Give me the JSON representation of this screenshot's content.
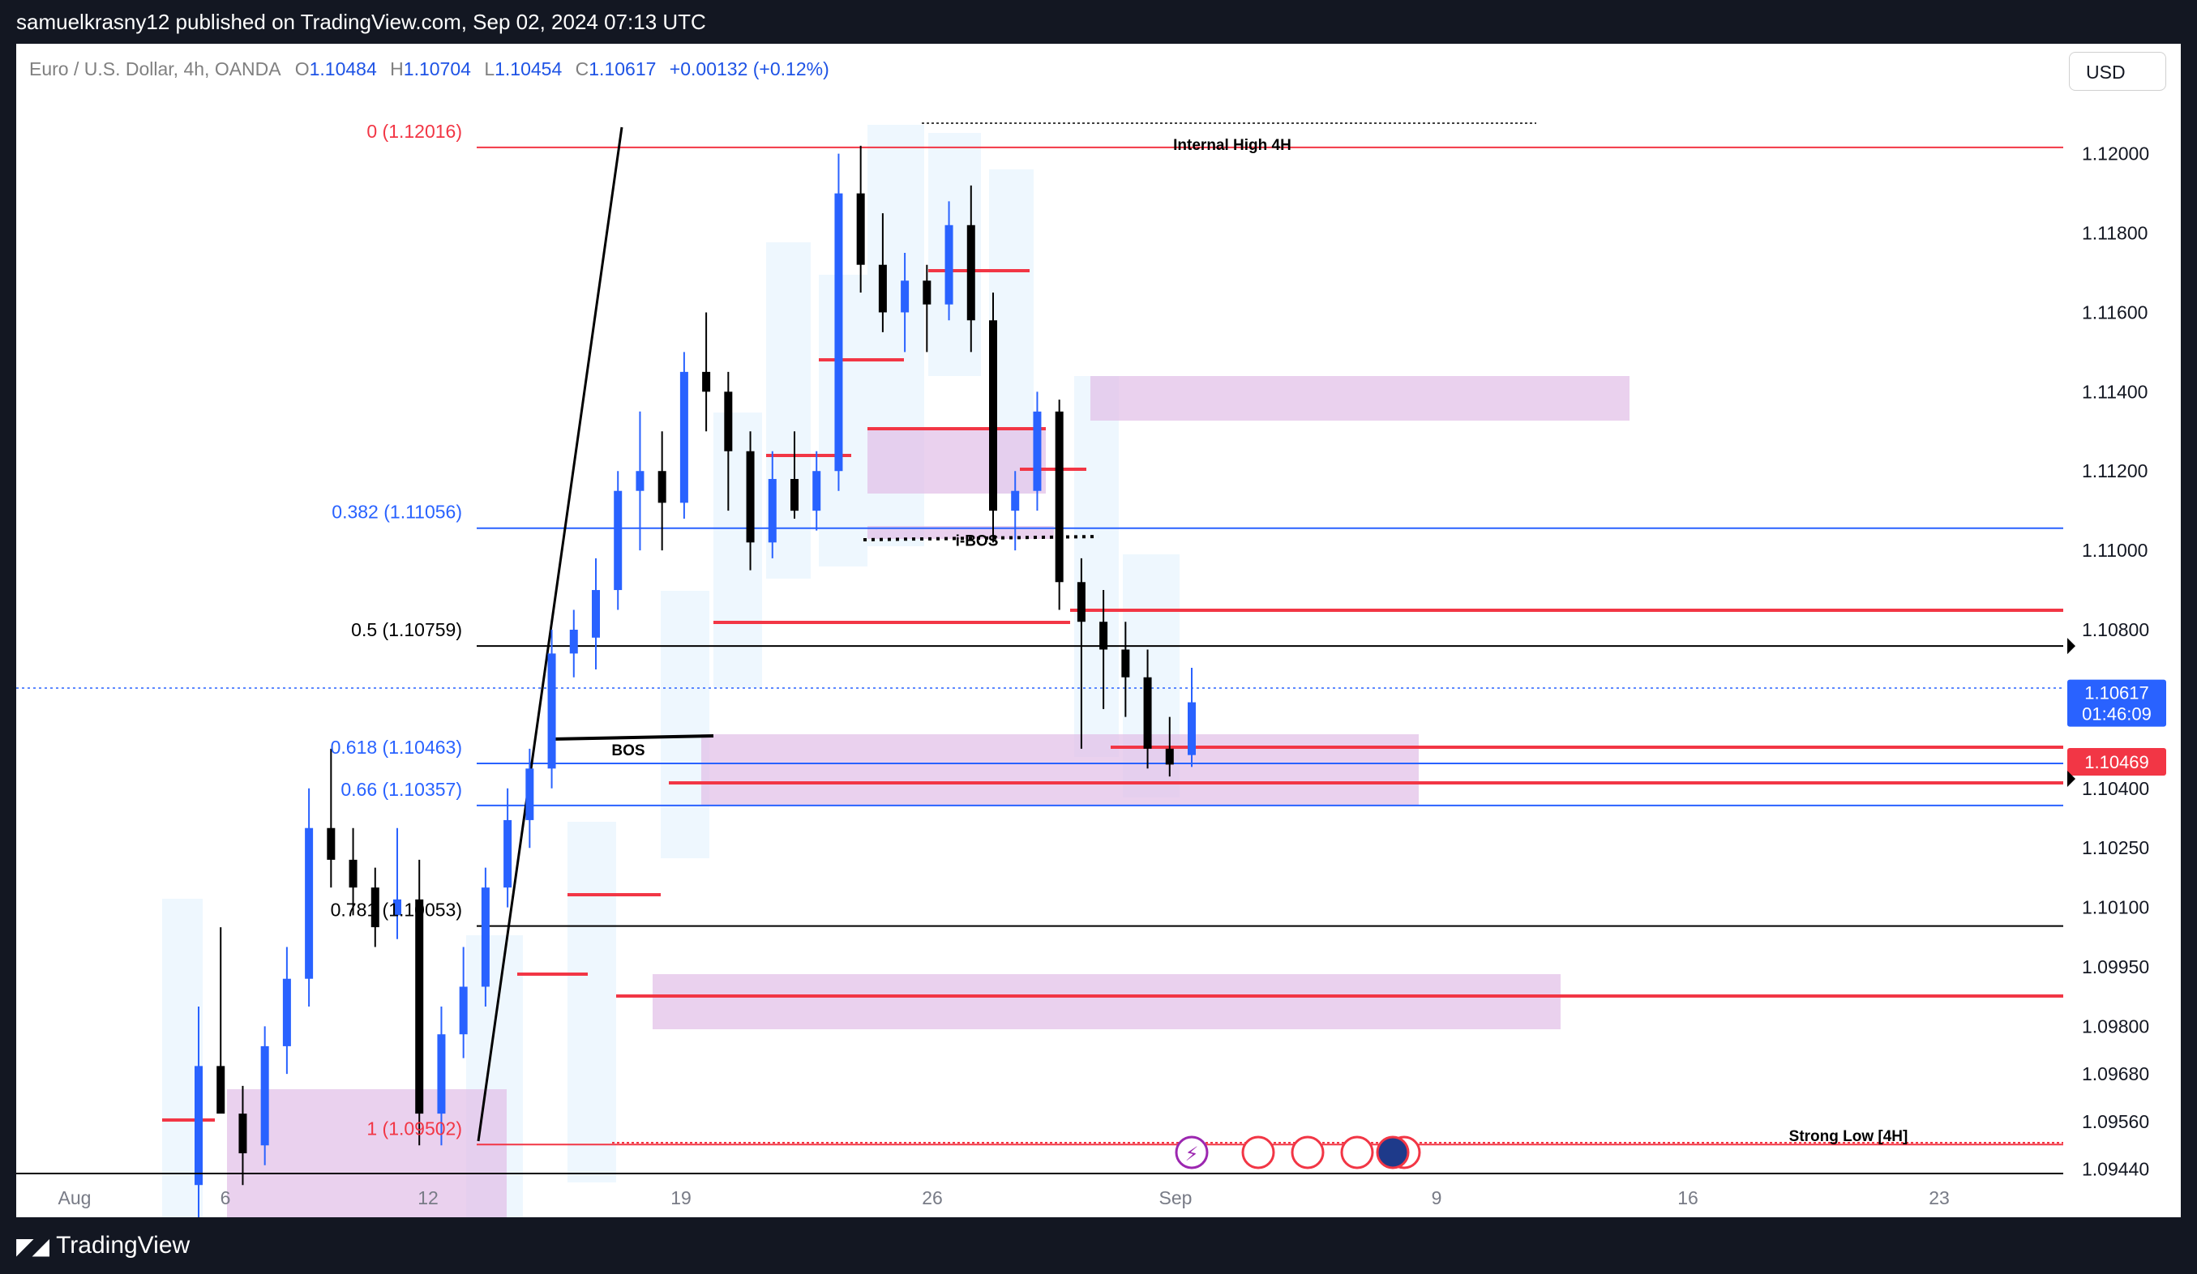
{
  "header": {
    "publisher": "samuelkrasny12 published on TradingView.com, Sep 02, 2024 07:13 UTC"
  },
  "footer": {
    "brand": "TradingView"
  },
  "legend": {
    "symbol": "Euro / U.S. Dollar, 4h, OANDA",
    "o_label": "O",
    "o": "1.10484",
    "h_label": "H",
    "h": "1.10704",
    "l_label": "L",
    "l": "1.10454",
    "c_label": "C",
    "c": "1.10617",
    "change": "+0.00132 (+0.12%)"
  },
  "currency_button": "USD",
  "colors": {
    "up": "#2962ff",
    "down": "#000000",
    "level_red": "#f23645",
    "fib_blue": "#2962ff",
    "zone": "#e1bee7",
    "range_box": "#e3f2fd"
  },
  "chart_data": {
    "type": "candlestick",
    "symbol": "EURUSD",
    "timeframe": "4h",
    "ylim": [
      1.0938,
      1.1222
    ],
    "y_ticks": [
      "1.12000",
      "1.11800",
      "1.11600",
      "1.11400",
      "1.11200",
      "1.11000",
      "1.10800",
      "1.10600",
      "1.10400",
      "1.10250",
      "1.10100",
      "1.09950",
      "1.09800",
      "1.09680",
      "1.09560",
      "1.09440"
    ],
    "x_ticks": [
      "Aug",
      "6",
      "12",
      "19",
      "26",
      "Sep",
      "9",
      "16",
      "23"
    ],
    "current_price": {
      "value": "1.10617",
      "countdown": "01:46:09",
      "price": 1.10617
    },
    "alert_price": {
      "value": "1.10469",
      "price": 1.10469
    },
    "fib_levels": [
      {
        "label": "0 (1.12016)",
        "price": 1.12016,
        "color": "red"
      },
      {
        "label": "0.382 (1.11056)",
        "price": 1.11056,
        "color": "blue"
      },
      {
        "label": "0.5 (1.10759)",
        "price": 1.10759,
        "color": "black"
      },
      {
        "label": "0.618 (1.10463)",
        "price": 1.10463,
        "color": "blue"
      },
      {
        "label": "0.66 (1.10357)",
        "price": 1.10357,
        "color": "blue"
      },
      {
        "label": "0.781 (1.10053)",
        "price": 1.10053,
        "color": "black"
      },
      {
        "label": "1 (1.09502)",
        "price": 1.09502,
        "color": "red"
      }
    ],
    "annotations": [
      {
        "text": "Internal High 4H",
        "price": 1.1203
      },
      {
        "text": "i-BOS",
        "price": 1.10999
      },
      {
        "text": "BOS",
        "price": 1.10471
      },
      {
        "text": "Strong Low [4H]",
        "price": 1.09498
      }
    ],
    "candles": [
      [
        1.094,
        1.0985,
        1.093,
        1.097
      ],
      [
        1.097,
        1.1005,
        1.096,
        1.0958
      ],
      [
        1.0958,
        1.0965,
        1.094,
        1.0948
      ],
      [
        1.095,
        1.098,
        1.0945,
        1.0975
      ],
      [
        1.0975,
        1.1,
        1.0968,
        1.0992
      ],
      [
        1.0992,
        1.104,
        1.0985,
        1.103
      ],
      [
        1.103,
        1.105,
        1.1015,
        1.1022
      ],
      [
        1.1022,
        1.103,
        1.1008,
        1.1015
      ],
      [
        1.1015,
        1.102,
        1.1,
        1.1005
      ],
      [
        1.1008,
        1.103,
        1.1002,
        1.1012
      ],
      [
        1.1012,
        1.1022,
        1.095,
        1.0958
      ],
      [
        1.0958,
        1.0985,
        1.095,
        1.0978
      ],
      [
        1.0978,
        1.1,
        1.0972,
        1.099
      ],
      [
        1.099,
        1.102,
        1.0985,
        1.1015
      ],
      [
        1.1015,
        1.104,
        1.101,
        1.1032
      ],
      [
        1.1032,
        1.105,
        1.1025,
        1.1045
      ],
      [
        1.1045,
        1.108,
        1.104,
        1.1074
      ],
      [
        1.1074,
        1.1085,
        1.1068,
        1.108
      ],
      [
        1.1078,
        1.1098,
        1.107,
        1.109
      ],
      [
        1.109,
        1.112,
        1.1085,
        1.1115
      ],
      [
        1.1115,
        1.1135,
        1.11,
        1.112
      ],
      [
        1.112,
        1.113,
        1.11,
        1.1112
      ],
      [
        1.1112,
        1.115,
        1.1108,
        1.1145
      ],
      [
        1.1145,
        1.116,
        1.113,
        1.114
      ],
      [
        1.114,
        1.1145,
        1.111,
        1.1125
      ],
      [
        1.1125,
        1.113,
        1.1095,
        1.1102
      ],
      [
        1.1102,
        1.1125,
        1.1098,
        1.1118
      ],
      [
        1.1118,
        1.113,
        1.1108,
        1.111
      ],
      [
        1.111,
        1.1125,
        1.1105,
        1.112
      ],
      [
        1.112,
        1.12,
        1.1115,
        1.119
      ],
      [
        1.119,
        1.1202,
        1.1165,
        1.1172
      ],
      [
        1.1172,
        1.1185,
        1.1155,
        1.116
      ],
      [
        1.116,
        1.1175,
        1.115,
        1.1168
      ],
      [
        1.1168,
        1.1172,
        1.115,
        1.1162
      ],
      [
        1.1162,
        1.1188,
        1.1158,
        1.1182
      ],
      [
        1.1182,
        1.1192,
        1.115,
        1.1158
      ],
      [
        1.1158,
        1.1165,
        1.1102,
        1.111
      ],
      [
        1.111,
        1.112,
        1.11,
        1.1115
      ],
      [
        1.1115,
        1.114,
        1.111,
        1.1135
      ],
      [
        1.1135,
        1.1138,
        1.1085,
        1.1092
      ],
      [
        1.1092,
        1.1098,
        1.105,
        1.1082
      ],
      [
        1.1082,
        1.109,
        1.106,
        1.1075
      ],
      [
        1.1075,
        1.1082,
        1.1058,
        1.1068
      ],
      [
        1.1068,
        1.1075,
        1.1045,
        1.105
      ],
      [
        1.105,
        1.1058,
        1.1043,
        1.1046
      ],
      [
        1.10484,
        1.10704,
        1.10454,
        1.10617
      ]
    ]
  }
}
